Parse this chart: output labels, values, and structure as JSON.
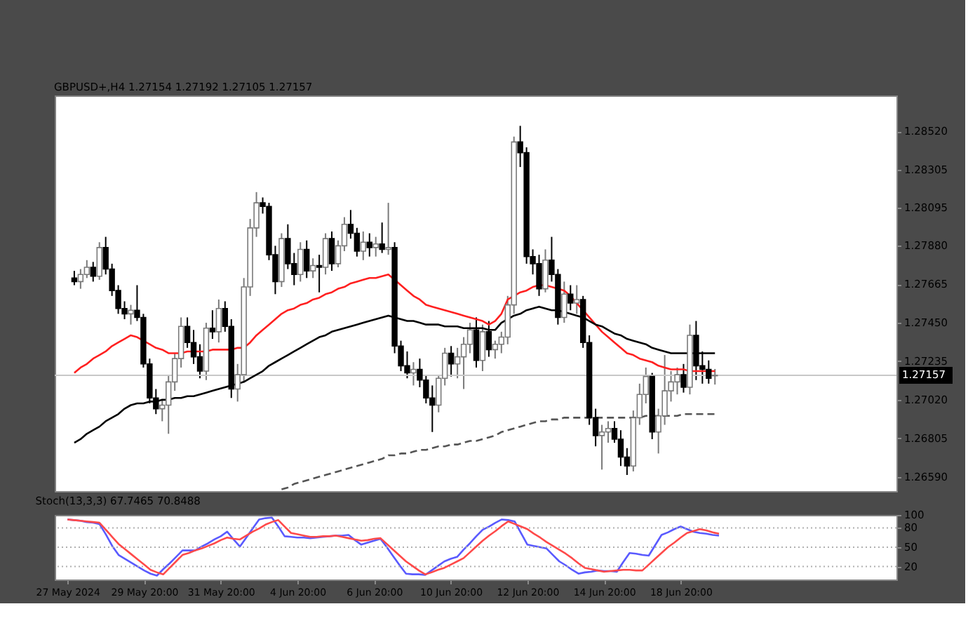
{
  "chart_data": [
    {
      "type": "candlestick",
      "title": "GBPUSD+,H4 1.27154 1.27192 1.27105 1.27157",
      "categories": [
        null,
        null,
        null,
        null,
        null,
        null,
        null,
        null,
        null,
        null,
        null,
        null,
        null,
        null,
        null,
        null,
        null,
        null,
        null,
        null,
        null,
        null,
        null,
        null,
        null,
        null,
        null,
        null,
        null,
        null,
        null,
        null,
        null,
        null,
        null,
        null,
        null,
        null,
        null,
        null,
        null,
        null,
        null,
        null,
        null,
        null,
        null,
        null,
        null,
        null,
        null,
        null,
        null,
        null,
        null,
        null,
        null,
        null,
        null,
        null,
        null,
        null,
        null,
        null,
        null,
        null,
        null,
        null,
        null,
        null,
        null,
        null,
        null,
        null,
        null,
        null,
        null,
        null,
        null,
        null,
        null,
        null,
        null,
        null,
        null,
        null,
        null,
        null,
        null,
        null,
        null,
        null,
        null,
        null,
        null,
        null,
        null,
        null,
        null,
        null,
        null,
        null,
        null
      ],
      "ohlc": [
        [
          1.277,
          1.2774,
          1.2766,
          1.2768
        ],
        [
          1.2768,
          1.2775,
          1.2764,
          1.2772
        ],
        [
          1.2772,
          1.278,
          1.277,
          1.2776
        ],
        [
          1.2776,
          1.2779,
          1.2768,
          1.2771
        ],
        [
          1.2771,
          1.279,
          1.2769,
          1.2787
        ],
        [
          1.2787,
          1.2793,
          1.2772,
          1.2775
        ],
        [
          1.2775,
          1.2778,
          1.276,
          1.2763
        ],
        [
          1.2763,
          1.2766,
          1.275,
          1.2753
        ],
        [
          1.2753,
          1.2757,
          1.2747,
          1.275
        ],
        [
          1.275,
          1.2755,
          1.2744,
          1.2752
        ],
        [
          1.2752,
          1.2766,
          1.2746,
          1.2748
        ],
        [
          1.2748,
          1.275,
          1.272,
          1.2722
        ],
        [
          1.2722,
          1.2725,
          1.27,
          1.2703
        ],
        [
          1.2703,
          1.2708,
          1.2694,
          1.2697
        ],
        [
          1.2697,
          1.2702,
          1.269,
          1.2699
        ],
        [
          1.2699,
          1.2716,
          1.2683,
          1.2712
        ],
        [
          1.2712,
          1.2728,
          1.2707,
          1.2725
        ],
        [
          1.2725,
          1.2748,
          1.272,
          1.2743
        ],
        [
          1.2743,
          1.2748,
          1.2731,
          1.2734
        ],
        [
          1.2734,
          1.2741,
          1.2722,
          1.2726
        ],
        [
          1.2726,
          1.2733,
          1.2714,
          1.2718
        ],
        [
          1.2718,
          1.2745,
          1.2713,
          1.2742
        ],
        [
          1.2742,
          1.2752,
          1.2736,
          1.274
        ],
        [
          1.274,
          1.2758,
          1.2734,
          1.2753
        ],
        [
          1.2753,
          1.2757,
          1.274,
          1.2743
        ],
        [
          1.2743,
          1.2747,
          1.2703,
          1.2708
        ],
        [
          1.2708,
          1.2722,
          1.2701,
          1.2716
        ],
        [
          1.2716,
          1.277,
          1.2712,
          1.2765
        ],
        [
          1.2765,
          1.2803,
          1.276,
          1.2798
        ],
        [
          1.2798,
          1.2818,
          1.2793,
          1.2812
        ],
        [
          1.2812,
          1.2815,
          1.2806,
          1.281
        ],
        [
          1.281,
          1.2812,
          1.278,
          1.2783
        ],
        [
          1.2783,
          1.2788,
          1.2761,
          1.2768
        ],
        [
          1.2768,
          1.2795,
          1.2765,
          1.2792
        ],
        [
          1.2792,
          1.28,
          1.2775,
          1.2778
        ],
        [
          1.2778,
          1.2784,
          1.2766,
          1.2772
        ],
        [
          1.2772,
          1.279,
          1.2768,
          1.2786
        ],
        [
          1.2786,
          1.2791,
          1.277,
          1.2774
        ],
        [
          1.2774,
          1.2781,
          1.277,
          1.2777
        ],
        [
          1.2777,
          1.2783,
          1.2762,
          1.2776
        ],
        [
          1.2776,
          1.2795,
          1.2772,
          1.2792
        ],
        [
          1.2792,
          1.2796,
          1.2774,
          1.2778
        ],
        [
          1.2778,
          1.2791,
          1.2776,
          1.2788
        ],
        [
          1.2788,
          1.2804,
          1.2785,
          1.28
        ],
        [
          1.28,
          1.2808,
          1.2792,
          1.2795
        ],
        [
          1.2795,
          1.2798,
          1.2782,
          1.2785
        ],
        [
          1.2785,
          1.2796,
          1.278,
          1.279
        ],
        [
          1.279,
          1.2795,
          1.2782,
          1.2787
        ],
        [
          1.2787,
          1.2793,
          1.2782,
          1.2789
        ],
        [
          1.2789,
          1.2801,
          1.2784,
          1.2786
        ],
        [
          1.2786,
          1.2812,
          1.2783,
          1.2787
        ],
        [
          1.2787,
          1.279,
          1.2728,
          1.2732
        ],
        [
          1.2732,
          1.2735,
          1.2718,
          1.2721
        ],
        [
          1.2721,
          1.2729,
          1.2714,
          1.2717
        ],
        [
          1.2717,
          1.2723,
          1.271,
          1.2719
        ],
        [
          1.2719,
          1.2725,
          1.2709,
          1.2713
        ],
        [
          1.2713,
          1.2716,
          1.27,
          1.2703
        ],
        [
          1.2703,
          1.271,
          1.2684,
          1.2699
        ],
        [
          1.2699,
          1.2716,
          1.2695,
          1.2714
        ],
        [
          1.2714,
          1.2731,
          1.271,
          1.2728
        ],
        [
          1.2728,
          1.2732,
          1.2715,
          1.2722
        ],
        [
          1.2722,
          1.2731,
          1.2714,
          1.2726
        ],
        [
          1.2726,
          1.2737,
          1.2708,
          1.2733
        ],
        [
          1.2733,
          1.2745,
          1.2728,
          1.2741
        ],
        [
          1.2741,
          1.2748,
          1.272,
          1.2724
        ],
        [
          1.2724,
          1.2744,
          1.2718,
          1.274
        ],
        [
          1.274,
          1.2746,
          1.2726,
          1.273
        ],
        [
          1.273,
          1.2735,
          1.2725,
          1.2733
        ],
        [
          1.2733,
          1.274,
          1.2728,
          1.2737
        ],
        [
          1.2737,
          1.276,
          1.2733,
          1.2755
        ],
        [
          1.2755,
          1.2849,
          1.275,
          1.2846
        ],
        [
          1.2846,
          1.2855,
          1.2832,
          1.284
        ],
        [
          1.284,
          1.2843,
          1.2778,
          1.2782
        ],
        [
          1.2782,
          1.2786,
          1.2772,
          1.2778
        ],
        [
          1.2778,
          1.2783,
          1.276,
          1.2764
        ],
        [
          1.2764,
          1.2786,
          1.2762,
          1.278
        ],
        [
          1.278,
          1.2793,
          1.2768,
          1.2772
        ],
        [
          1.2772,
          1.2775,
          1.2744,
          1.2748
        ],
        [
          1.2748,
          1.2768,
          1.2745,
          1.2761
        ],
        [
          1.2761,
          1.2766,
          1.2752,
          1.2756
        ],
        [
          1.2756,
          1.2766,
          1.275,
          1.2758
        ],
        [
          1.2758,
          1.276,
          1.2731,
          1.2734
        ],
        [
          1.2734,
          1.2738,
          1.2688,
          1.2692
        ],
        [
          1.2692,
          1.2697,
          1.2676,
          1.2682
        ],
        [
          1.2682,
          1.2688,
          1.2663,
          1.2684
        ],
        [
          1.2684,
          1.269,
          1.2678,
          1.2686
        ],
        [
          1.2686,
          1.269,
          1.2678,
          1.268
        ],
        [
          1.268,
          1.2685,
          1.2665,
          1.267
        ],
        [
          1.267,
          1.2675,
          1.266,
          1.2665
        ],
        [
          1.2665,
          1.2696,
          1.2662,
          1.2692
        ],
        [
          1.2692,
          1.2711,
          1.2688,
          1.2705
        ],
        [
          1.2705,
          1.272,
          1.27,
          1.2715
        ],
        [
          1.2715,
          1.2717,
          1.268,
          1.2684
        ],
        [
          1.2684,
          1.2697,
          1.2672,
          1.2693
        ],
        [
          1.2693,
          1.2727,
          1.2688,
          1.2707
        ],
        [
          1.2707,
          1.2718,
          1.2701,
          1.2712
        ],
        [
          1.2712,
          1.272,
          1.2705,
          1.2716
        ],
        [
          1.2716,
          1.2722,
          1.2706,
          1.2709
        ],
        [
          1.2709,
          1.2744,
          1.2705,
          1.2738
        ],
        [
          1.2738,
          1.2746,
          1.2713,
          1.2721
        ],
        [
          1.2721,
          1.2729,
          1.2711,
          1.2719
        ],
        [
          1.2719,
          1.2724,
          1.2711,
          1.2714
        ],
        [
          1.27154,
          1.27192,
          1.27105,
          1.27157
        ]
      ],
      "series": [
        {
          "type": "line",
          "color": "#ff2020",
          "line_style": "solid",
          "values": [
            1.2717,
            1.272,
            1.2722,
            1.2725,
            1.2727,
            1.2729,
            1.2732,
            1.2734,
            1.2736,
            1.2738,
            1.2737,
            1.2735,
            1.2733,
            1.2731,
            1.273,
            1.2728,
            1.2728,
            1.2728,
            1.2729,
            1.2729,
            1.2729,
            1.2729,
            1.273,
            1.273,
            1.273,
            1.273,
            1.2731,
            1.2731,
            1.2734,
            1.2738,
            1.2741,
            1.2744,
            1.2747,
            1.275,
            1.2752,
            1.2753,
            1.2755,
            1.2756,
            1.2758,
            1.2759,
            1.2761,
            1.2762,
            1.2764,
            1.2765,
            1.2767,
            1.2768,
            1.2769,
            1.277,
            1.277,
            1.2771,
            1.2772,
            1.2769,
            1.2766,
            1.2763,
            1.276,
            1.2758,
            1.2755,
            1.2754,
            1.2753,
            1.2752,
            1.2751,
            1.275,
            1.2749,
            1.2748,
            1.2747,
            1.2746,
            1.2744,
            1.2746,
            1.275,
            1.2758,
            1.276,
            1.2762,
            1.2763,
            1.2765,
            1.2766,
            1.2766,
            1.2765,
            1.2764,
            1.2763,
            1.276,
            1.2756,
            1.2752,
            1.2748,
            1.2744,
            1.274,
            1.2737,
            1.2734,
            1.2731,
            1.2728,
            1.2727,
            1.2725,
            1.2724,
            1.2723,
            1.2721,
            1.272,
            1.2719,
            1.2719,
            1.2719,
            1.2718,
            1.2718,
            1.2718,
            1.2718,
            1.2718
          ]
        },
        {
          "type": "line",
          "color": "#000000",
          "line_style": "solid",
          "values": [
            1.2678,
            1.268,
            1.2683,
            1.2685,
            1.2687,
            1.269,
            1.2692,
            1.2694,
            1.2697,
            1.2699,
            1.27,
            1.27,
            1.2701,
            1.2701,
            1.2702,
            1.2702,
            1.2703,
            1.2703,
            1.2704,
            1.2704,
            1.2705,
            1.2706,
            1.2707,
            1.2708,
            1.2709,
            1.271,
            1.2711,
            1.2712,
            1.2714,
            1.2716,
            1.2718,
            1.2721,
            1.2723,
            1.2725,
            1.2727,
            1.2729,
            1.2731,
            1.2733,
            1.2735,
            1.2737,
            1.2738,
            1.274,
            1.2741,
            1.2742,
            1.2743,
            1.2744,
            1.2745,
            1.2746,
            1.2747,
            1.2748,
            1.2749,
            1.2748,
            1.2747,
            1.2746,
            1.2746,
            1.2745,
            1.2744,
            1.2744,
            1.2744,
            1.2743,
            1.2743,
            1.2743,
            1.2742,
            1.2742,
            1.2742,
            1.2742,
            1.2741,
            1.2741,
            1.2745,
            1.2747,
            1.2749,
            1.275,
            1.2752,
            1.2753,
            1.2754,
            1.2753,
            1.2752,
            1.2752,
            1.2751,
            1.275,
            1.2749,
            1.2748,
            1.2746,
            1.2744,
            1.2743,
            1.2741,
            1.2739,
            1.2738,
            1.2736,
            1.2735,
            1.2734,
            1.2733,
            1.2731,
            1.273,
            1.2729,
            1.2728,
            1.2728,
            1.2728,
            1.2728,
            1.2728,
            1.2728,
            1.2728,
            1.2728
          ]
        },
        {
          "type": "line",
          "color": "#555555",
          "line_style": "dashed",
          "values": [
            null,
            null,
            null,
            null,
            null,
            null,
            null,
            null,
            null,
            null,
            null,
            null,
            null,
            null,
            null,
            null,
            null,
            null,
            null,
            null,
            null,
            null,
            null,
            null,
            null,
            null,
            null,
            null,
            null,
            null,
            null,
            null,
            null,
            1.2652,
            1.2653,
            1.2655,
            1.2656,
            1.2657,
            1.2658,
            1.2659,
            1.266,
            1.2661,
            1.2662,
            1.2663,
            1.2664,
            1.2665,
            1.2666,
            1.2667,
            1.2668,
            1.2669,
            1.2671,
            1.2671,
            1.2672,
            1.2672,
            1.2673,
            1.2674,
            1.2674,
            1.2675,
            1.2676,
            1.2676,
            1.2677,
            1.2677,
            1.2678,
            1.2679,
            1.2679,
            1.268,
            1.2681,
            1.2682,
            1.2684,
            1.2685,
            1.2686,
            1.2687,
            1.2688,
            1.2689,
            1.269,
            1.269,
            1.2691,
            1.2691,
            1.2692,
            1.2692,
            1.2692,
            1.2692,
            1.2692,
            1.2692,
            1.2692,
            1.2692,
            1.2692,
            1.2692,
            1.2692,
            1.2692,
            1.2692,
            1.2693,
            1.2693,
            1.2693,
            1.2693,
            1.2693,
            1.2693,
            1.2694,
            1.2694,
            1.2694,
            1.2694,
            1.2694,
            1.2694
          ]
        }
      ],
      "ylim": [
        1.2651,
        1.2872
      ],
      "yticks": [
        {
          "value": 1.2659,
          "label": "1.26590"
        },
        {
          "value": 1.26805,
          "label": "1.26805"
        },
        {
          "value": 1.2702,
          "label": "1.27020"
        },
        {
          "value": 1.27235,
          "label": "1.27235"
        },
        {
          "value": 1.2745,
          "label": "1.27450"
        },
        {
          "value": 1.27665,
          "label": "1.27665"
        },
        {
          "value": 1.2788,
          "label": "1.27880"
        },
        {
          "value": 1.28095,
          "label": "1.28095"
        },
        {
          "value": 1.28305,
          "label": "1.28305"
        },
        {
          "value": 1.2852,
          "label": "1.28520"
        }
      ],
      "ref_lines": [
        {
          "axis": "y",
          "value": 1.27157,
          "label": "1.27157",
          "color": "#c8c8c8"
        }
      ],
      "tick_labels": "y",
      "grid": false
    },
    {
      "type": "line",
      "title": "Stoch(13,3,3) 67.7465 70.8488",
      "categories": [
        "27 May 2024",
        null,
        null,
        null,
        null,
        null,
        null,
        null,
        null,
        null,
        null,
        null,
        "29 May 20:00",
        null,
        null,
        null,
        null,
        null,
        null,
        null,
        null,
        null,
        null,
        null,
        "31 May 20:00",
        null,
        null,
        null,
        null,
        null,
        null,
        null,
        null,
        null,
        null,
        null,
        "4 Jun 20:00",
        null,
        null,
        null,
        null,
        null,
        null,
        null,
        null,
        null,
        null,
        null,
        "6 Jun 20:00",
        null,
        null,
        null,
        null,
        null,
        null,
        null,
        null,
        null,
        null,
        null,
        "10 Jun 20:00",
        null,
        null,
        null,
        null,
        null,
        null,
        null,
        null,
        null,
        null,
        null,
        "12 Jun 20:00",
        null,
        null,
        null,
        null,
        null,
        null,
        null,
        null,
        null,
        null,
        null,
        "14 Jun 20:00",
        null,
        null,
        null,
        null,
        null,
        null,
        null,
        null,
        null,
        null,
        null,
        "18 Jun 20:00",
        null,
        null,
        null,
        null,
        null,
        null
      ],
      "series": [
        {
          "color": "#5a5aff",
          "values": [
            93,
            92,
            91,
            89,
            88,
            86,
            70,
            52,
            38,
            32,
            26,
            20,
            14,
            9,
            6,
            16,
            25,
            35,
            45,
            45,
            45,
            51,
            56,
            62,
            67,
            74,
            62,
            51,
            65,
            79,
            93,
            95,
            96,
            82,
            67,
            66,
            65,
            65,
            64,
            65,
            66,
            67,
            68,
            68,
            69,
            61,
            54,
            57,
            60,
            63,
            50,
            36,
            22,
            9,
            8,
            8,
            7,
            14,
            21,
            28,
            32,
            35,
            46,
            56,
            67,
            77,
            82,
            88,
            93,
            92,
            90,
            72,
            54,
            52,
            50,
            48,
            38,
            28,
            22,
            15,
            9,
            11,
            12,
            14,
            13,
            13,
            12,
            27,
            41,
            40,
            38,
            37,
            53,
            69,
            73,
            78,
            82,
            78,
            74,
            72,
            71,
            69,
            68
          ]
        },
        {
          "color": "#ff4a4a",
          "values": [
            93,
            92,
            91,
            90,
            89,
            88,
            77,
            66,
            55,
            47,
            39,
            31,
            23,
            15,
            11,
            8,
            18,
            28,
            38,
            41,
            45,
            48,
            52,
            56,
            61,
            65,
            63,
            62,
            68,
            74,
            79,
            85,
            89,
            92,
            82,
            72,
            70,
            68,
            66,
            66,
            67,
            67,
            68,
            66,
            64,
            62,
            60,
            61,
            63,
            64,
            55,
            46,
            37,
            28,
            21,
            14,
            8,
            11,
            15,
            18,
            23,
            28,
            33,
            42,
            51,
            60,
            68,
            75,
            83,
            90,
            86,
            82,
            78,
            71,
            65,
            58,
            52,
            46,
            40,
            33,
            25,
            18,
            16,
            14,
            12,
            13,
            14,
            15,
            15,
            14,
            14,
            23,
            32,
            41,
            50,
            57,
            65,
            72,
            75,
            78,
            76,
            73,
            71
          ]
        }
      ],
      "ylim": [
        0,
        100
      ],
      "yticks": [
        20,
        50,
        80,
        100
      ],
      "ref_lines": [
        {
          "axis": "y",
          "value": 20,
          "color": "#b0b0b0",
          "line_style": "dotted"
        },
        {
          "axis": "y",
          "value": 50,
          "color": "#b0b0b0",
          "line_style": "dotted"
        },
        {
          "axis": "y",
          "value": 80,
          "color": "#b0b0b0",
          "line_style": "dotted"
        }
      ],
      "grid": false,
      "line_style": "solid",
      "marker": "none"
    }
  ]
}
